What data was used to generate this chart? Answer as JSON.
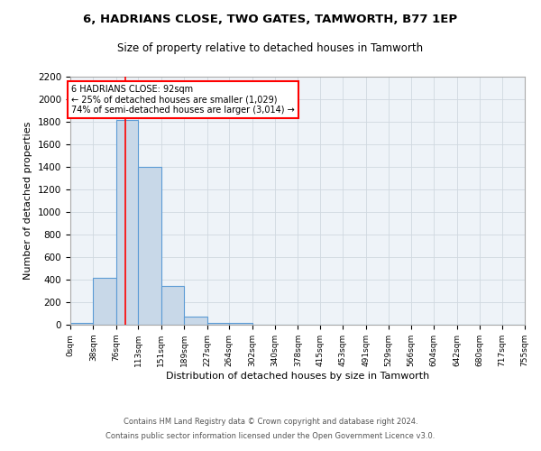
{
  "title": "6, HADRIANS CLOSE, TWO GATES, TAMWORTH, B77 1EP",
  "subtitle": "Size of property relative to detached houses in Tamworth",
  "xlabel": "Distribution of detached houses by size in Tamworth",
  "ylabel": "Number of detached properties",
  "bar_edges": [
    0,
    38,
    76,
    113,
    151,
    189,
    227,
    264,
    302,
    340,
    378,
    415,
    453,
    491,
    529,
    566,
    604,
    642,
    680,
    717,
    755
  ],
  "bar_heights": [
    15,
    420,
    1820,
    1400,
    345,
    75,
    20,
    15,
    0,
    0,
    0,
    0,
    0,
    0,
    0,
    0,
    0,
    0,
    0,
    0
  ],
  "bar_color": "#c8d8e8",
  "bar_edge_color": "#5b9bd5",
  "red_line_x": 92,
  "ylim": [
    0,
    2200
  ],
  "yticks": [
    0,
    200,
    400,
    600,
    800,
    1000,
    1200,
    1400,
    1600,
    1800,
    2000,
    2200
  ],
  "xtick_labels": [
    "0sqm",
    "38sqm",
    "76sqm",
    "113sqm",
    "151sqm",
    "189sqm",
    "227sqm",
    "264sqm",
    "302sqm",
    "340sqm",
    "378sqm",
    "415sqm",
    "453sqm",
    "491sqm",
    "529sqm",
    "566sqm",
    "604sqm",
    "642sqm",
    "680sqm",
    "717sqm",
    "755sqm"
  ],
  "annotation_text": "6 HADRIANS CLOSE: 92sqm\n← 25% of detached houses are smaller (1,029)\n74% of semi-detached houses are larger (3,014) →",
  "annotation_box_color": "white",
  "annotation_box_edge_color": "red",
  "grid_color": "#d0d8e0",
  "bg_color": "#eef3f8",
  "footer_line1": "Contains HM Land Registry data © Crown copyright and database right 2024.",
  "footer_line2": "Contains public sector information licensed under the Open Government Licence v3.0."
}
